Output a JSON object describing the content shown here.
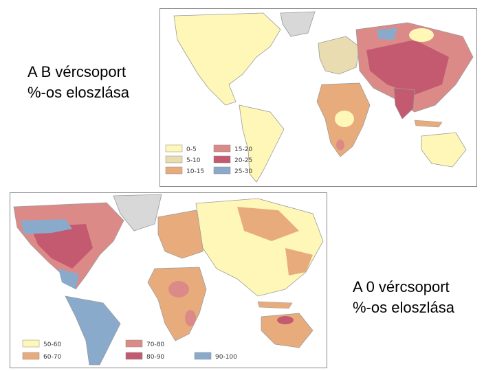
{
  "captions": {
    "b_map": "A B vércsoport\n%-os eloszlása",
    "o_map": "A 0 vércsoport\n%-os eloszlása"
  },
  "legend_b": [
    {
      "label": "0-5",
      "color": "#fff7b8"
    },
    {
      "label": "5-10",
      "color": "#e8dcb0"
    },
    {
      "label": "10-15",
      "color": "#e8ac7c"
    },
    {
      "label": "15-20",
      "color": "#dc8a88"
    },
    {
      "label": "20-25",
      "color": "#c45a70"
    },
    {
      "label": "25-30",
      "color": "#8aaacc"
    }
  ],
  "legend_0": [
    {
      "label": "50-60",
      "color": "#fff7b8"
    },
    {
      "label": "60-70",
      "color": "#e8ac7c"
    },
    {
      "label": "70-80",
      "color": "#dc8a88"
    },
    {
      "label": "80-90",
      "color": "#c45a70"
    },
    {
      "label": "90-100",
      "color": "#8aaacc"
    }
  ],
  "colors": {
    "ocean": "#ffffff",
    "land_outline": "#9a9a9a",
    "greenland": "#d8d8d8"
  }
}
